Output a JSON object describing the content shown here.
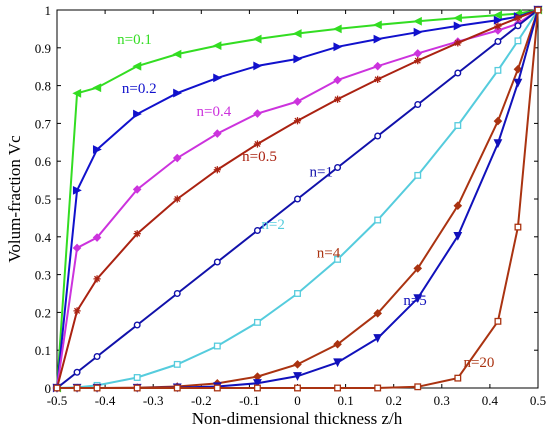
{
  "chart_data": {
    "type": "line",
    "xlabel": "Non-dimensional thickness z/h",
    "ylabel": "Volum-fraction Vc",
    "xlim": [
      -0.5,
      0.5
    ],
    "ylim": [
      0,
      1
    ],
    "x_ticks": [
      -0.5,
      -0.4,
      -0.3,
      -0.2,
      -0.1,
      0,
      0.1,
      0.2,
      0.3,
      0.4,
      0.5
    ],
    "x_tick_labels": [
      "-0.5",
      "-0.4",
      "-0.3",
      "-0.2",
      "-0.1",
      "0",
      "0.1",
      "0.2",
      "0.3",
      "0.4",
      "0.5"
    ],
    "y_ticks": [
      0,
      0.1,
      0.2,
      0.3,
      0.4,
      0.5,
      0.6,
      0.7,
      0.8,
      0.9,
      1
    ],
    "y_tick_labels": [
      "0",
      "0.1",
      "0.2",
      "0.3",
      "0.4",
      "0.5",
      "0.6",
      "0.7",
      "0.8",
      "0.9",
      "1"
    ],
    "grid": false,
    "x": [
      -0.5,
      -0.4583,
      -0.4167,
      -0.3333,
      -0.25,
      -0.1667,
      -0.0833,
      0,
      0.0833,
      0.1667,
      0.25,
      0.3333,
      0.4167,
      0.4583,
      0.5
    ],
    "series": [
      {
        "name": "n=0.1",
        "n": 0.1,
        "color": "#33dd22",
        "marker": "triangle-left",
        "values": [
          0,
          0.7796,
          0.7943,
          0.8513,
          0.8832,
          0.9057,
          0.9232,
          0.9377,
          0.95,
          0.9607,
          0.9702,
          0.9788,
          0.9866,
          0.9903,
          1.0
        ]
      },
      {
        "name": "n=0.2",
        "n": 0.2,
        "color": "#1111cc",
        "marker": "triangle-right",
        "values": [
          0,
          0.5228,
          0.631,
          0.7248,
          0.7802,
          0.8204,
          0.8521,
          0.8706,
          0.9026,
          0.923,
          0.9413,
          0.9579,
          0.9731,
          0.9826,
          1.0
        ]
      },
      {
        "name": "n=0.4",
        "n": 0.4,
        "color": "#cc33dd",
        "marker": "diamond",
        "values": [
          0,
          0.3705,
          0.3981,
          0.5253,
          0.6084,
          0.673,
          0.7261,
          0.7579,
          0.8147,
          0.8514,
          0.8851,
          0.9164,
          0.9458,
          0.9641,
          1.0
        ]
      },
      {
        "name": "n=0.5",
        "n": 0.5,
        "color": "#aa2211",
        "marker": "asterisk",
        "values": [
          0,
          0.2041,
          0.2887,
          0.4082,
          0.5,
          0.5774,
          0.6455,
          0.7071,
          0.7638,
          0.8165,
          0.866,
          0.9129,
          0.9574,
          0.9789,
          1.0
        ]
      },
      {
        "name": "n=1",
        "n": 1,
        "color": "#1111aa",
        "marker": "circle",
        "values": [
          0,
          0.0417,
          0.0833,
          0.1667,
          0.25,
          0.3333,
          0.4167,
          0.5,
          0.5833,
          0.6667,
          0.75,
          0.8333,
          0.9167,
          0.9583,
          1.0
        ]
      },
      {
        "name": "n=2",
        "n": 2,
        "color": "#55ccdd",
        "marker": "square",
        "values": [
          0,
          0.0017,
          0.0069,
          0.0278,
          0.0625,
          0.1111,
          0.1736,
          0.25,
          0.3403,
          0.4444,
          0.5625,
          0.6944,
          0.8403,
          0.9184,
          1.0
        ]
      },
      {
        "name": "n=4",
        "n": 4,
        "color": "#aa3311",
        "marker": "diamond",
        "values": [
          0,
          0,
          0,
          0.0008,
          0.0039,
          0.0123,
          0.0301,
          0.0625,
          0.1158,
          0.1975,
          0.3164,
          0.4823,
          0.7061,
          0.8434,
          1.0
        ]
      },
      {
        "name": "n=5",
        "n": 5,
        "color": "#1111bb",
        "marker": "triangle-down",
        "values": [
          0,
          0,
          0,
          0.0001,
          0.001,
          0.0041,
          0.0126,
          0.0313,
          0.0675,
          0.1317,
          0.2373,
          0.4019,
          0.6472,
          0.8074,
          1.0
        ]
      },
      {
        "name": "n=20",
        "n": 20,
        "color": "#aa3311",
        "marker": "square",
        "values": [
          0,
          0,
          0,
          0,
          0,
          0,
          0,
          0,
          0,
          0,
          0.0032,
          0.0261,
          0.1764,
          0.4257,
          1.0
        ]
      }
    ],
    "annotations": [
      {
        "text": "n=0.1",
        "color": "#33dd22",
        "at": [
          -0.375,
          0.91
        ]
      },
      {
        "text": "n=0.2",
        "color": "#1111cc",
        "at": [
          -0.365,
          0.78
        ]
      },
      {
        "text": "n=0.4",
        "color": "#cc33dd",
        "at": [
          -0.21,
          0.72
        ]
      },
      {
        "text": "n=0.5",
        "color": "#aa2211",
        "at": [
          -0.115,
          0.6
        ]
      },
      {
        "text": "n=1",
        "color": "#1111aa",
        "at": [
          0.025,
          0.56
        ]
      },
      {
        "text": "n=2",
        "color": "#55ccdd",
        "at": [
          -0.075,
          0.42
        ]
      },
      {
        "text": "n=4",
        "color": "#aa3311",
        "at": [
          0.04,
          0.345
        ]
      },
      {
        "text": "n=5",
        "color": "#1111bb",
        "at": [
          0.22,
          0.22
        ]
      },
      {
        "text": "n=20",
        "color": "#aa3311",
        "at": [
          0.345,
          0.055
        ]
      }
    ]
  }
}
